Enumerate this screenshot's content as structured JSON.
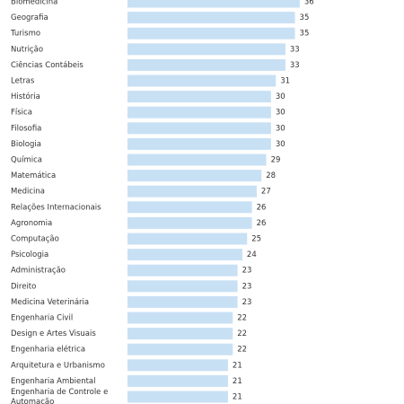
{
  "chart_data": {
    "type": "bar",
    "orientation": "horizontal",
    "bar_color": "#c8e0f4",
    "label_color": "#333333",
    "xlim": [
      0,
      36
    ],
    "grid": false,
    "categories": [
      "Biomedicina",
      "Geografia",
      "Turismo",
      "Nutrição",
      "Ciências Contábeis",
      "Letras",
      "História",
      "Física",
      "Filosofia",
      "Biologia",
      "Química",
      "Matemática",
      "Medicina",
      "Relações Internacionais",
      "Agronomia",
      "Computação",
      "Psicologia",
      "Administração",
      "Direito",
      "Medicina Veterinária",
      "Engenharia Civil",
      "Design e Artes Visuais",
      "Engenharia elétrica",
      "Arquitetura e Urbanismo",
      "Engenharia Ambiental",
      "Engenharia de Controle e Automação"
    ],
    "values": [
      36,
      35,
      35,
      33,
      33,
      31,
      30,
      30,
      30,
      30,
      29,
      28,
      27,
      26,
      26,
      25,
      24,
      23,
      23,
      23,
      22,
      22,
      22,
      21,
      21,
      21
    ]
  }
}
